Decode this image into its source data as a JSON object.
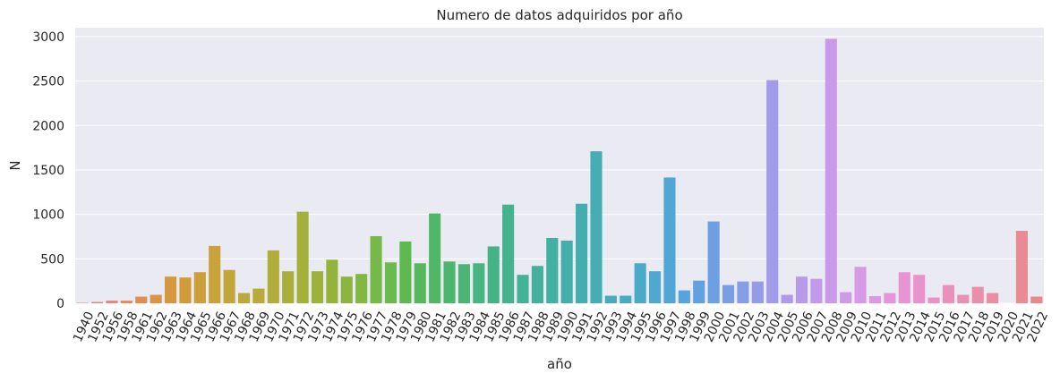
{
  "chart_data": {
    "type": "bar",
    "title": "Numero de datos adquiridos por año",
    "xlabel": "año",
    "ylabel": "N",
    "ylim": [
      0,
      3100
    ],
    "yticks": [
      0,
      500,
      1000,
      1500,
      2000,
      2500,
      3000
    ],
    "grid": true,
    "categories": [
      "1940",
      "1952",
      "1956",
      "1958",
      "1961",
      "1962",
      "1963",
      "1964",
      "1965",
      "1966",
      "1967",
      "1968",
      "1969",
      "1970",
      "1971",
      "1972",
      "1973",
      "1974",
      "1975",
      "1976",
      "1977",
      "1978",
      "1979",
      "1980",
      "1981",
      "1982",
      "1983",
      "1984",
      "1985",
      "1986",
      "1987",
      "1988",
      "1989",
      "1990",
      "1991",
      "1992",
      "1993",
      "1994",
      "1995",
      "1996",
      "1997",
      "1998",
      "1999",
      "2000",
      "2001",
      "2002",
      "2003",
      "2004",
      "2005",
      "2006",
      "2007",
      "2008",
      "2009",
      "2010",
      "2011",
      "2012",
      "2013",
      "2014",
      "2015",
      "2016",
      "2017",
      "2018",
      "2019",
      "2020",
      "2021",
      "2022"
    ],
    "values": [
      5,
      15,
      30,
      30,
      75,
      95,
      300,
      290,
      350,
      645,
      375,
      115,
      165,
      595,
      360,
      1030,
      360,
      490,
      300,
      330,
      755,
      460,
      695,
      450,
      1010,
      470,
      440,
      450,
      640,
      1110,
      320,
      420,
      735,
      705,
      1120,
      1710,
      85,
      85,
      450,
      360,
      1415,
      145,
      255,
      920,
      205,
      245,
      245,
      2510,
      95,
      300,
      275,
      2975,
      125,
      410,
      80,
      115,
      350,
      320,
      65,
      205,
      95,
      185,
      115,
      0,
      815,
      75
    ],
    "colors": [
      "#e8817c",
      "#e9837a",
      "#e98678",
      "#e58a62",
      "#df8e51",
      "#da9349",
      "#d6983f",
      "#d29b3a",
      "#cd9f3a",
      "#c8a33a",
      "#c2a63a",
      "#bda93a",
      "#b7ab3a",
      "#b1ad3a",
      "#aaae3a",
      "#a3b03a",
      "#9cb23a",
      "#94b33c",
      "#8cb53f",
      "#82b744",
      "#76b948",
      "#6bba4d",
      "#5eb951",
      "#56b85c",
      "#4fb765",
      "#4cb66f",
      "#4ab577",
      "#48b47f",
      "#46b387",
      "#45b28e",
      "#44b295",
      "#43b19b",
      "#42b0a2",
      "#43afa8",
      "#44aeae",
      "#45adb4",
      "#47acba",
      "#49abc1",
      "#4baac8",
      "#4ea8cf",
      "#52a6d6",
      "#58a3dc",
      "#62a1df",
      "#6d9fe2",
      "#7a9ee4",
      "#879de6",
      "#949ce8",
      "#a19be9",
      "#ad9aea",
      "#b89aeb",
      "#c29aec",
      "#c99aea",
      "#d09ae7",
      "#d79ae4",
      "#de98e0",
      "#e595da",
      "#e894d3",
      "#e993cb",
      "#ea92c3",
      "#ea91bb",
      "#ea90b3",
      "#ea8fab",
      "#ea8ea3",
      "#ea8d9b",
      "#e98b93",
      "#e8898b"
    ]
  }
}
